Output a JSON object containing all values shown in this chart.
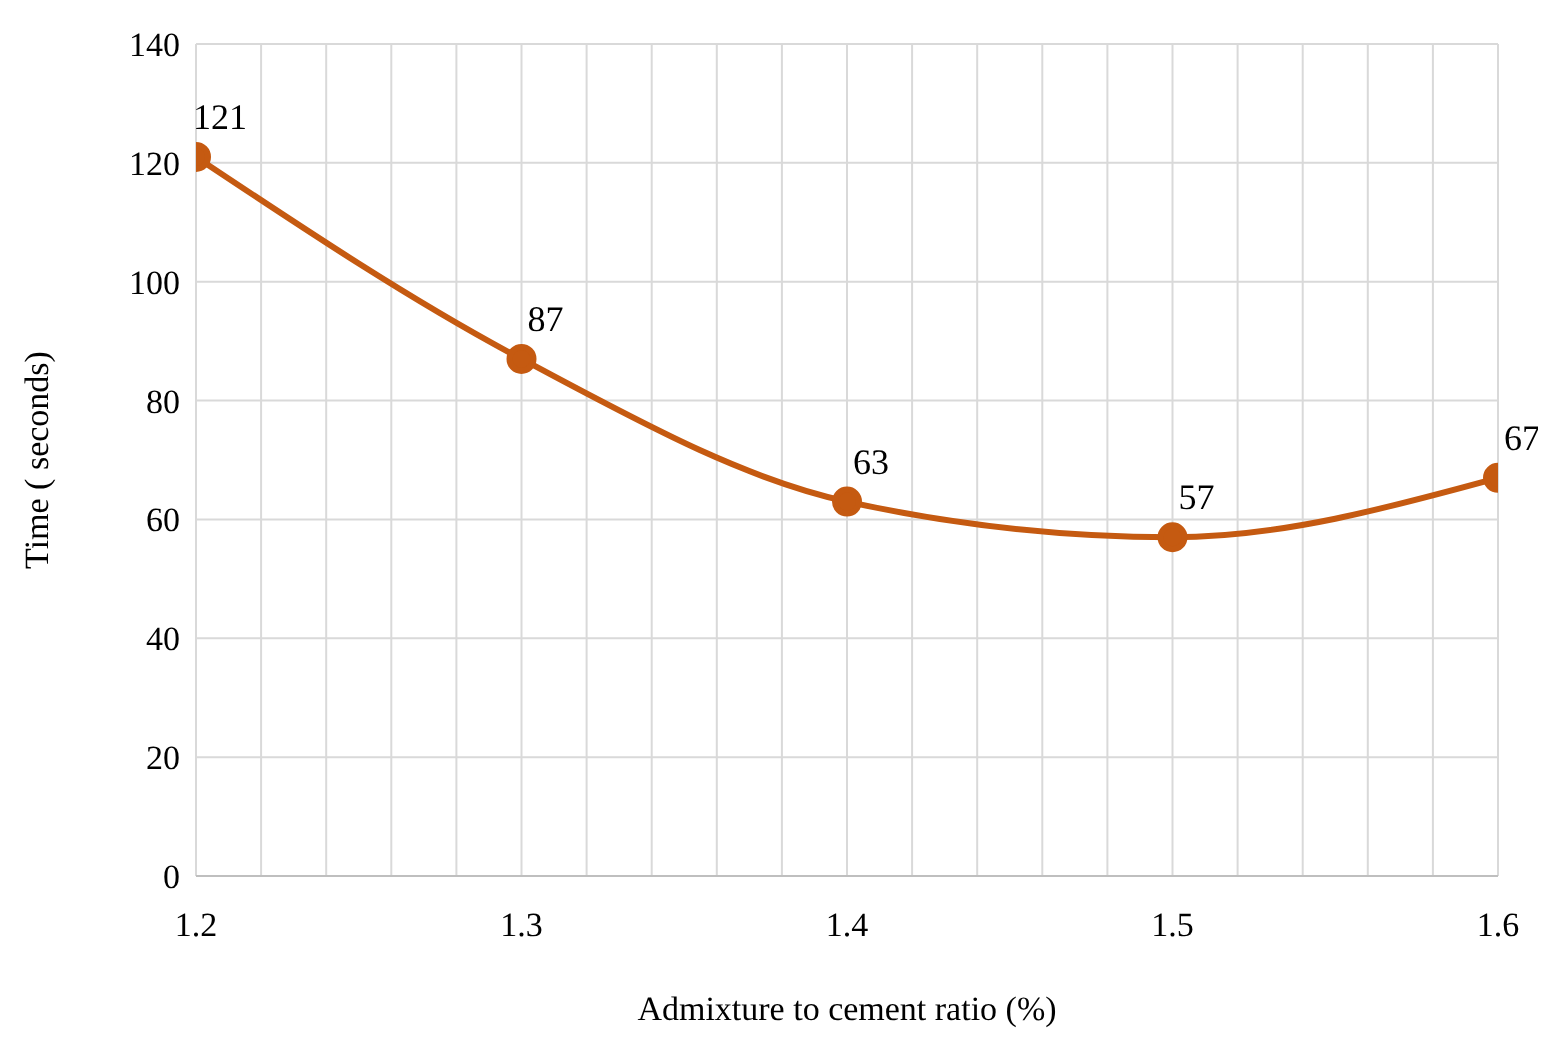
{
  "chart_data": {
    "type": "line",
    "xlabel": "Admixture to cement ratio (%)",
    "ylabel": "Time ( seconds)",
    "x": [
      1.2,
      1.3,
      1.4,
      1.5,
      1.6
    ],
    "series": [
      {
        "color": "#c55a11",
        "values": [
          121,
          87,
          63,
          57,
          67
        ]
      }
    ],
    "xlim": [
      1.2,
      1.6
    ],
    "xticks": [
      1.2,
      {
        "value": 1.22,
        "label": null
      },
      {
        "value": 1.24,
        "label": null
      },
      {
        "value": 1.26,
        "label": null
      },
      {
        "value": 1.28,
        "label": null
      },
      1.3,
      {
        "value": 1.32,
        "label": null
      },
      {
        "value": 1.34,
        "label": null
      },
      {
        "value": 1.36,
        "label": null
      },
      {
        "value": 1.38,
        "label": null
      },
      1.4,
      {
        "value": 1.42,
        "label": null
      },
      {
        "value": 1.44,
        "label": null
      },
      {
        "value": 1.46,
        "label": null
      },
      {
        "value": 1.48,
        "label": null
      },
      1.5,
      {
        "value": 1.52,
        "label": null
      },
      {
        "value": 1.54,
        "label": null
      },
      {
        "value": 1.56,
        "label": null
      },
      {
        "value": 1.58,
        "label": null
      },
      1.6
    ],
    "ylim": [
      0,
      140
    ],
    "yticks": [
      0,
      20,
      40,
      60,
      80,
      100,
      120,
      140
    ],
    "grid": true,
    "marker": "circle",
    "line_style": "solid",
    "data_labels": true
  }
}
